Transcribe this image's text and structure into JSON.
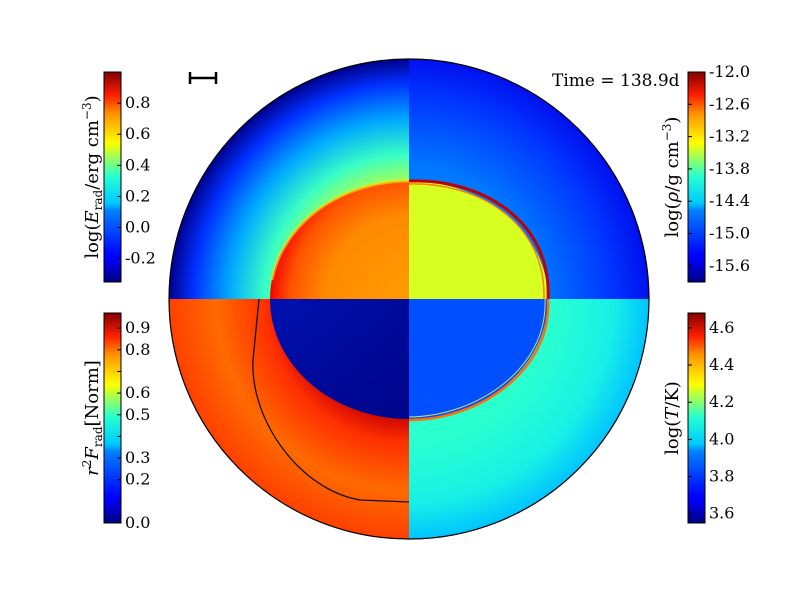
{
  "chart_data": {
    "type": "heatmap",
    "description_colormap": "jet",
    "time": {
      "value": 138.9,
      "unit": "d",
      "label": "Time = 138.9d"
    },
    "quadrants": [
      {
        "position": "top-left",
        "quantity": "log(E_rad/erg cm^-3)",
        "colorbar": "top-left"
      },
      {
        "position": "top-right",
        "quantity": "log(rho/g cm^-3)",
        "colorbar": "top-right"
      },
      {
        "position": "bottom-left",
        "quantity": "r^2 F_rad [Norm]",
        "colorbar": "bottom-left"
      },
      {
        "position": "bottom-right",
        "quantity": "log(T/K)",
        "colorbar": "bottom-right"
      }
    ],
    "colorbars": {
      "top_left": {
        "label_base": "log(",
        "label_sym": "E",
        "label_sub": "rad",
        "label_units": "/erg cm",
        "label_exp": "−3",
        "label_close": ")",
        "range": [
          -0.35,
          1.0
        ],
        "ticks": [
          -0.2,
          0.0,
          0.2,
          0.4,
          0.6,
          0.8
        ],
        "tick_labels": [
          "-0.2",
          "0.0",
          "0.2",
          "0.4",
          "0.6",
          "0.8"
        ]
      },
      "top_right": {
        "label_base": "log(",
        "label_sym": "ρ",
        "label_units": "/g cm",
        "label_exp": "−3",
        "label_close": ")",
        "range": [
          -15.9,
          -12.0
        ],
        "ticks": [
          -15.6,
          -15.0,
          -14.4,
          -13.8,
          -13.2,
          -12.6,
          -12.0
        ],
        "tick_labels": [
          "-15.6",
          "-15.0",
          "-14.4",
          "-13.8",
          "-13.2",
          "-12.6",
          "-12.0"
        ]
      },
      "bottom_left": {
        "label_sym": "r",
        "label_exp": "2",
        "label_sym2": "F",
        "label_sub": "rad",
        "label_units": "[Norm]",
        "range": [
          0.0,
          0.97
        ],
        "ticks": [
          0.0,
          0.1,
          0.2,
          0.3,
          0.4,
          0.5,
          0.6,
          0.7,
          0.8,
          0.9
        ],
        "tick_labels": [
          "0.0",
          "",
          "0.2",
          "0.3",
          "",
          "0.5",
          "0.6",
          "",
          "0.8",
          "0.9"
        ]
      },
      "bottom_right": {
        "label_base": "log(",
        "label_sym": "T",
        "label_units": "/K",
        "label_close": ")",
        "range": [
          3.55,
          4.68
        ],
        "ticks": [
          3.6,
          3.8,
          4.0,
          4.2,
          4.4,
          4.6
        ],
        "tick_labels": [
          "3.6",
          "3.8",
          "4.0",
          "4.2",
          "4.4",
          "4.6"
        ]
      }
    }
  }
}
